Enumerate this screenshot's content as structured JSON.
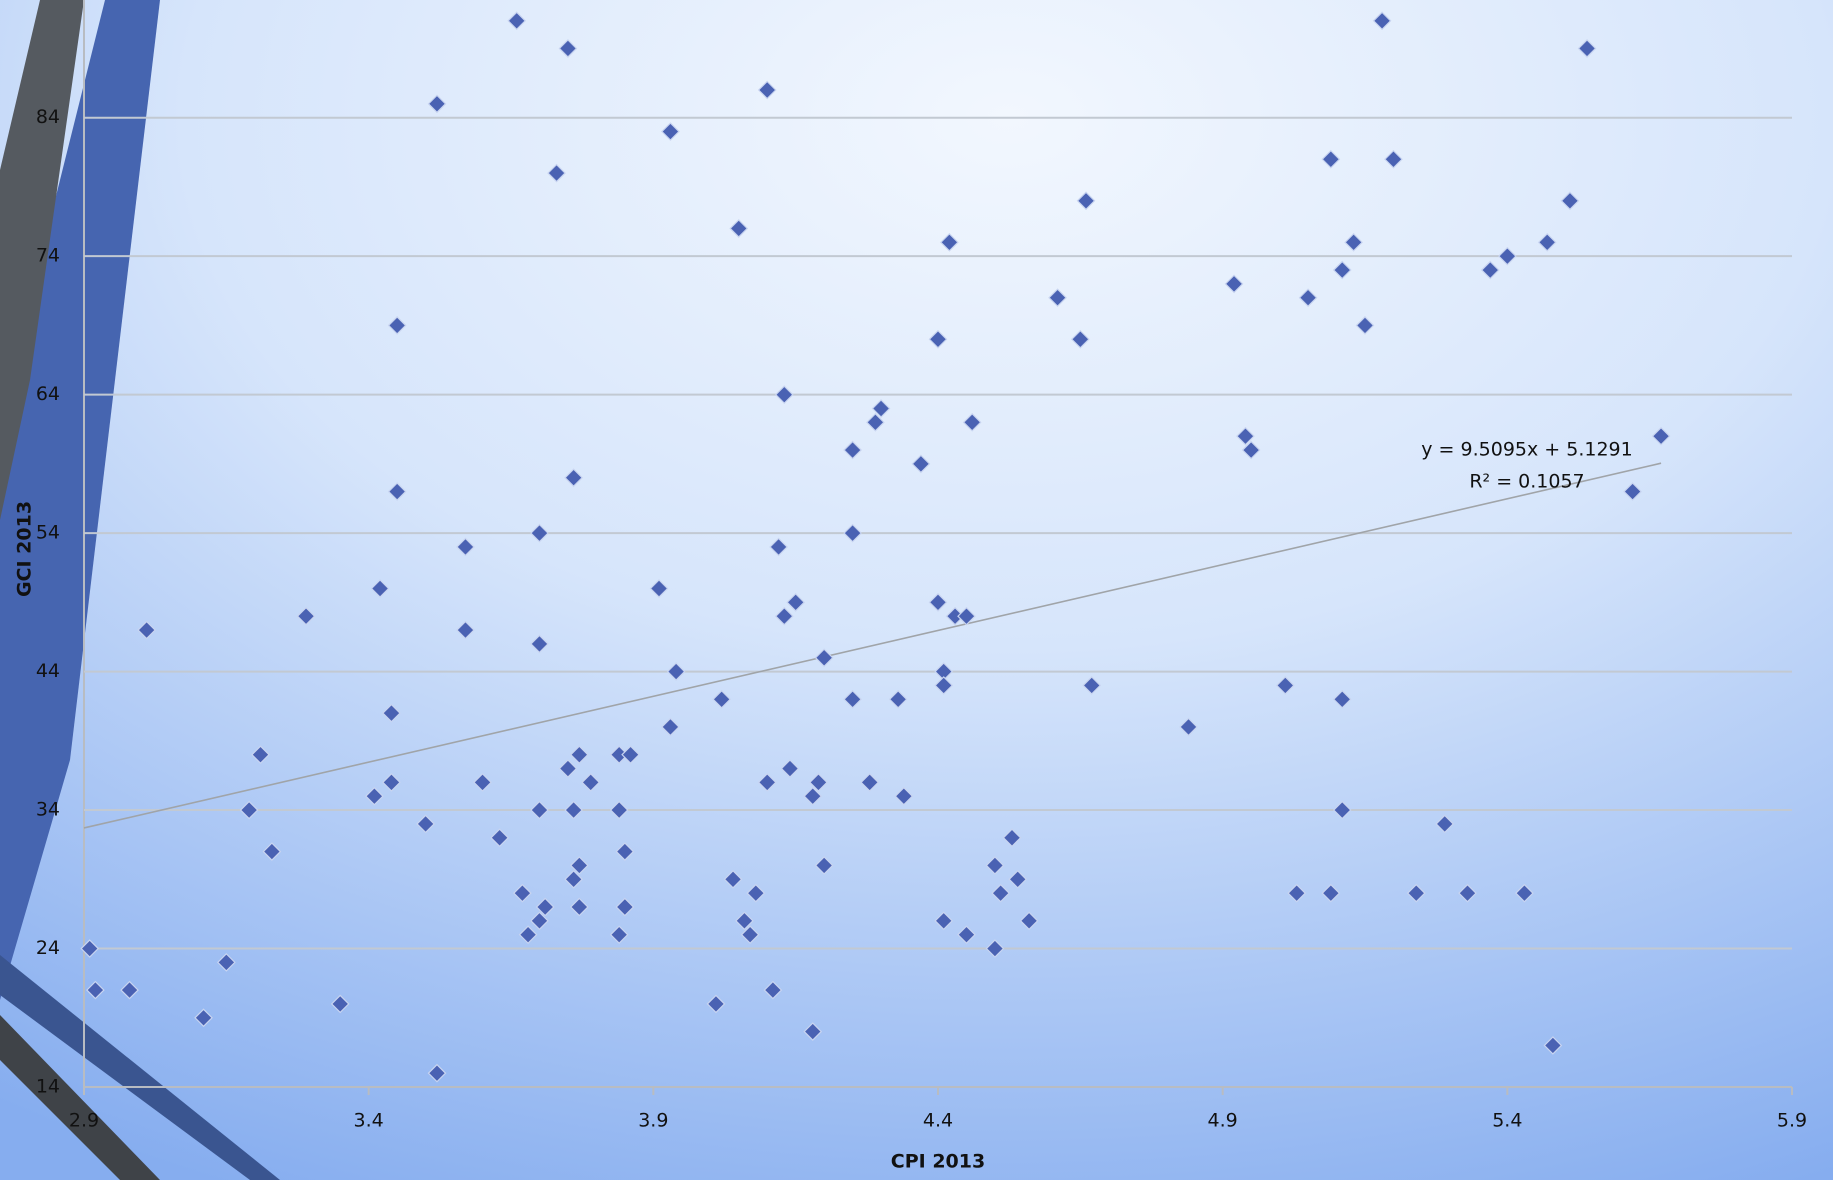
{
  "chart_data": {
    "type": "scatter",
    "x_label": "CPI 2013",
    "y_label": "GCI 2013",
    "xlim": [
      2.9,
      5.9
    ],
    "xticks": [
      2.9,
      3.4,
      3.9,
      4.4,
      4.9,
      5.4,
      5.9
    ],
    "ylim": [
      14,
      92.5
    ],
    "yticks": [
      14,
      24,
      34,
      44,
      54,
      64,
      74,
      84
    ],
    "grid": true,
    "color": "#4a62b3",
    "x": [
      3.66,
      3.75,
      3.52,
      4.1,
      3.93,
      3.73,
      4.05,
      3.45,
      3.45,
      3.76,
      3.57,
      3.7,
      3.42,
      3.57,
      3.29,
      3.01,
      3.7,
      3.91,
      3.94,
      3.44,
      3.93,
      4.02,
      3.21,
      3.19,
      3.23,
      3.41,
      3.44,
      3.5,
      3.6,
      3.63,
      3.75,
      3.77,
      3.79,
      3.7,
      3.76,
      3.84,
      3.86,
      3.84,
      3.85,
      3.77,
      3.76,
      3.67,
      3.71,
      3.77,
      3.85,
      3.7,
      3.68,
      3.84,
      2.91,
      2.92,
      2.98,
      3.15,
      3.11,
      3.35,
      3.52,
      4.01,
      4.11,
      4.18,
      4.04,
      4.08,
      4.06,
      4.07,
      4.1,
      4.14,
      4.18,
      4.19,
      4.2,
      4.28,
      4.34,
      4.25,
      4.33,
      4.2,
      4.13,
      4.15,
      4.12,
      4.25,
      4.13,
      4.25,
      4.29,
      4.3,
      4.37,
      4.46,
      4.4,
      4.42,
      4.4,
      4.43,
      4.45,
      4.41,
      4.41,
      4.41,
      4.45,
      4.5,
      4.51,
      4.53,
      4.54,
      4.56,
      4.5,
      4.61,
      4.65,
      4.66,
      4.67,
      4.84,
      4.92,
      4.94,
      4.95,
      5.01,
      5.05,
      5.03,
      5.09,
      5.09,
      5.11,
      5.13,
      5.15,
      5.11,
      5.11,
      5.18,
      5.2,
      5.24,
      5.29,
      5.33,
      5.37,
      5.4,
      5.43,
      5.47,
      5.48,
      5.51,
      5.54,
      5.62,
      5.67
    ],
    "values": [
      91,
      89,
      85,
      86,
      83,
      80,
      76,
      69,
      57,
      58,
      53,
      54,
      50,
      47,
      48,
      47,
      46,
      50,
      44,
      41,
      40,
      42,
      38,
      34,
      31,
      35,
      36,
      33,
      36,
      32,
      37,
      38,
      36,
      34,
      34,
      38,
      38,
      34,
      31,
      30,
      29,
      28,
      27,
      27,
      27,
      26,
      25,
      25,
      24,
      21,
      21,
      23,
      19,
      20,
      15,
      20,
      21,
      18,
      29,
      28,
      26,
      25,
      36,
      37,
      35,
      36,
      30,
      36,
      35,
      42,
      42,
      45,
      48,
      49,
      53,
      54,
      64,
      60,
      62,
      63,
      59,
      62,
      68,
      75,
      49,
      48,
      48,
      44,
      43,
      26,
      25,
      30,
      28,
      32,
      29,
      26,
      24,
      71,
      68,
      78,
      43,
      40,
      72,
      61,
      60,
      43,
      71,
      28,
      28,
      81,
      73,
      75,
      69,
      42,
      34,
      91,
      81,
      28,
      33,
      28,
      73,
      74,
      28,
      75,
      17,
      78,
      89,
      57,
      61
    ],
    "trendline": {
      "label": "y = 9.5095x + 5.1291",
      "r2_label": "R² = 0.1057",
      "slope": 9.5095,
      "intercept": 5.1291,
      "color": "#a0a4a8"
    }
  }
}
